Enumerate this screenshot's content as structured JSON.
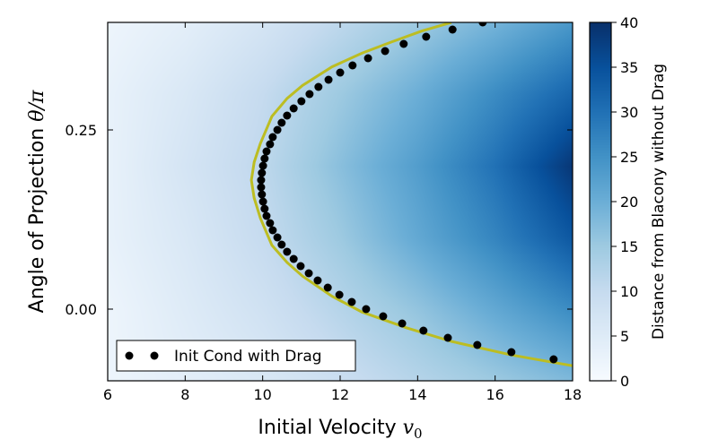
{
  "chart_data": {
    "type": "heatmap",
    "xlabel": "Initial Velocity ",
    "xlabel_math": "v",
    "xlabel_sub": "0",
    "ylabel": "Angle of Projection ",
    "ylabel_math": "θ/π",
    "xlim": [
      6,
      18
    ],
    "ylim": [
      -0.1,
      0.4
    ],
    "xticks": [
      6,
      8,
      10,
      12,
      14,
      16,
      18
    ],
    "xtick_labels": [
      "6",
      "8",
      "10",
      "12",
      "14",
      "16",
      "18"
    ],
    "yticks": [
      0.0,
      0.25
    ],
    "ytick_labels": [
      "0.00",
      "0.25"
    ],
    "colorbar": {
      "label": "Distance from Blacony without Drag",
      "range": [
        0,
        40
      ],
      "ticks": [
        0,
        5,
        10,
        15,
        20,
        25,
        30,
        35,
        40
      ],
      "tick_labels": [
        "0",
        "5",
        "10",
        "15",
        "20",
        "25",
        "30",
        "35",
        "40"
      ],
      "colormap": [
        "#f7fbff",
        "#deebf7",
        "#c6dbef",
        "#9ecae1",
        "#6baed6",
        "#4292c6",
        "#2171b5",
        "#08519c",
        "#08306b"
      ]
    },
    "heatmap": {
      "v": [
        6,
        8,
        10,
        12,
        14,
        16,
        18
      ],
      "theta": [
        0.4,
        0.3,
        0.2,
        0.1,
        0.0,
        -0.1
      ],
      "values": [
        [
          2,
          4,
          7,
          11,
          15,
          19,
          24
        ],
        [
          3,
          6,
          10,
          15,
          20,
          26,
          32
        ],
        [
          3,
          7,
          11,
          17,
          23,
          30,
          39
        ],
        [
          3,
          6,
          10,
          15,
          21,
          27,
          34
        ],
        [
          2,
          5,
          8,
          12,
          16,
          21,
          26
        ],
        [
          2,
          4,
          6,
          9,
          12,
          15,
          18
        ]
      ]
    },
    "curve": {
      "color": "#bcbd22",
      "points": [
        [
          18.0,
          -0.079
        ],
        [
          16.42,
          -0.064
        ],
        [
          14.87,
          -0.045
        ],
        [
          13.71,
          -0.026
        ],
        [
          12.56,
          -0.004
        ],
        [
          11.79,
          0.018
        ],
        [
          11.03,
          0.046
        ],
        [
          10.63,
          0.065
        ],
        [
          10.24,
          0.089
        ],
        [
          9.94,
          0.127
        ],
        [
          9.78,
          0.155
        ],
        [
          9.71,
          0.18
        ],
        [
          9.78,
          0.205
        ],
        [
          9.94,
          0.231
        ],
        [
          10.24,
          0.269
        ],
        [
          10.63,
          0.294
        ],
        [
          11.03,
          0.312
        ],
        [
          11.79,
          0.338
        ],
        [
          12.56,
          0.357
        ],
        [
          13.34,
          0.373
        ],
        [
          14.11,
          0.388
        ],
        [
          14.87,
          0.4
        ]
      ]
    },
    "series": [
      {
        "name": "Init Cond with Drag",
        "color": "#000000",
        "theta": [
          -0.07,
          -0.06,
          -0.05,
          -0.04,
          -0.03,
          -0.02,
          -0.01,
          0.0,
          0.01,
          0.02,
          0.03,
          0.04,
          0.05,
          0.06,
          0.07,
          0.08,
          0.09,
          0.1,
          0.11,
          0.12,
          0.13,
          0.14,
          0.15,
          0.16,
          0.17,
          0.18,
          0.19,
          0.2,
          0.21,
          0.22,
          0.23,
          0.24,
          0.25,
          0.26,
          0.27,
          0.28,
          0.29,
          0.3,
          0.31,
          0.32,
          0.33,
          0.34,
          0.35,
          0.36,
          0.37,
          0.38,
          0.39,
          0.4
        ],
        "v": [
          17.51,
          16.42,
          15.54,
          14.78,
          14.15,
          13.6,
          13.11,
          12.67,
          12.3,
          11.98,
          11.68,
          11.42,
          11.19,
          10.98,
          10.8,
          10.63,
          10.49,
          10.38,
          10.26,
          10.19,
          10.1,
          10.05,
          10.01,
          9.98,
          9.96,
          9.96,
          9.98,
          10.01,
          10.05,
          10.1,
          10.19,
          10.26,
          10.38,
          10.49,
          10.63,
          10.8,
          11.0,
          11.21,
          11.44,
          11.7,
          12.0,
          12.32,
          12.72,
          13.16,
          13.64,
          14.22,
          14.9,
          15.68
        ]
      }
    ],
    "legend": {
      "placement": "lower-left",
      "entries": [
        "Init Cond with Drag"
      ]
    },
    "grid": false
  }
}
